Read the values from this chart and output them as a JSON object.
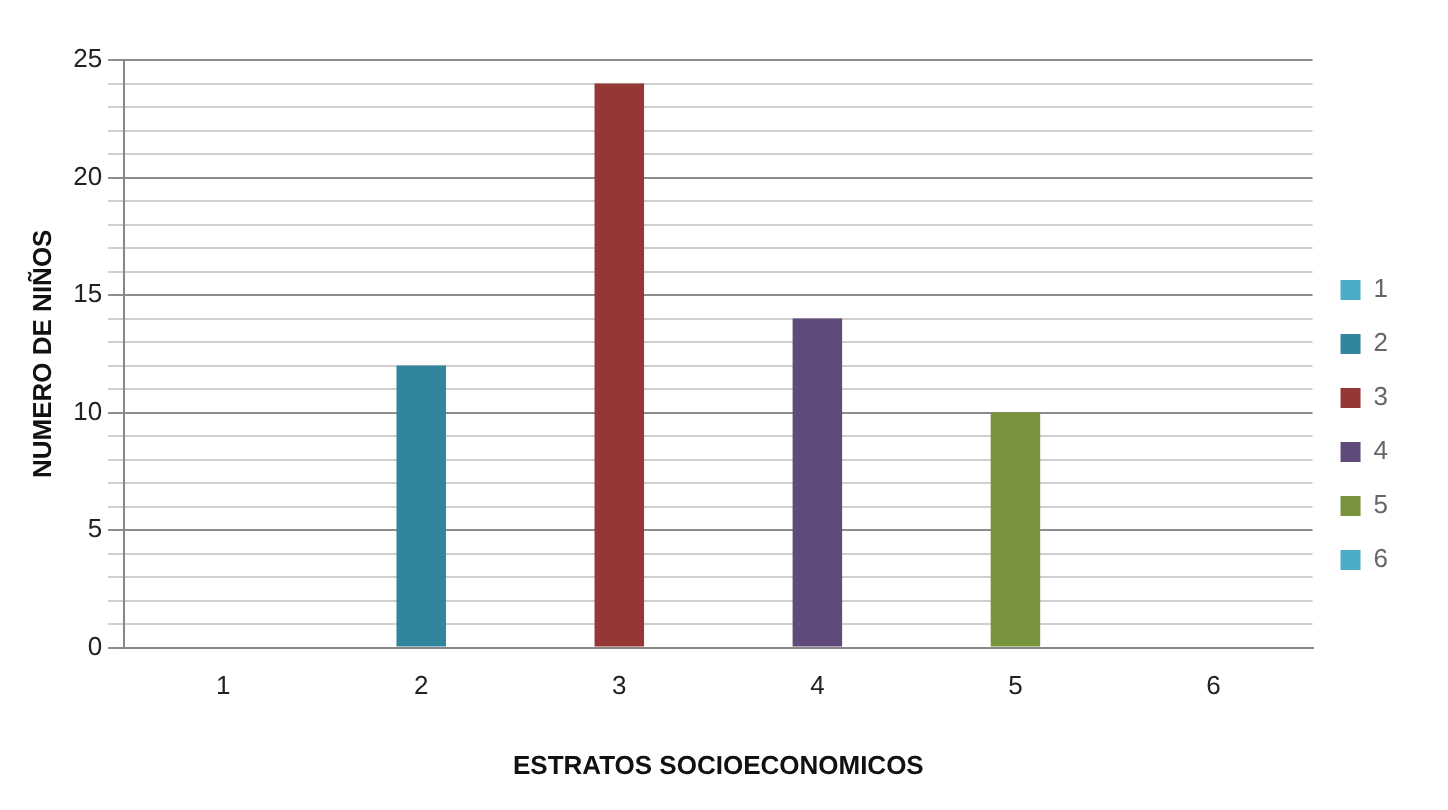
{
  "chart_data": {
    "type": "bar",
    "xlabel": "ESTRATOS SOCIOECONOMICOS",
    "ylabel": "NUMERO DE NIÑOS",
    "categories": [
      "1",
      "2",
      "3",
      "4",
      "5",
      "6"
    ],
    "series": [
      {
        "name": "1",
        "color": "#4bacc6",
        "values": [
          0,
          null,
          null,
          null,
          null,
          null
        ]
      },
      {
        "name": "2",
        "color": "#31859c",
        "values": [
          null,
          12,
          null,
          null,
          null,
          null
        ]
      },
      {
        "name": "3",
        "color": "#953735",
        "values": [
          null,
          null,
          24,
          null,
          null,
          null
        ]
      },
      {
        "name": "4",
        "color": "#604a7b",
        "values": [
          null,
          null,
          null,
          14,
          null,
          null
        ]
      },
      {
        "name": "5",
        "color": "#77933c",
        "values": [
          null,
          null,
          null,
          null,
          10,
          null
        ]
      },
      {
        "name": "6",
        "color": "#4bacc6",
        "values": [
          null,
          null,
          null,
          null,
          null,
          0
        ]
      }
    ],
    "ylim": [
      0,
      25
    ],
    "yticks": [
      0,
      {
        "value": 1,
        "label": null
      },
      {
        "value": 2,
        "label": null
      },
      {
        "value": 3,
        "label": null
      },
      {
        "value": 4,
        "label": null
      },
      5,
      {
        "value": 6,
        "label": null
      },
      {
        "value": 7,
        "label": null
      },
      {
        "value": 8,
        "label": null
      },
      {
        "value": 9,
        "label": null
      },
      10,
      {
        "value": 11,
        "label": null
      },
      {
        "value": 12,
        "label": null
      },
      {
        "value": 13,
        "label": null
      },
      {
        "value": 14,
        "label": null
      },
      15,
      {
        "value": 16,
        "label": null
      },
      {
        "value": 17,
        "label": null
      },
      {
        "value": 18,
        "label": null
      },
      {
        "value": 19,
        "label": null
      },
      20,
      {
        "value": 21,
        "label": null
      },
      {
        "value": 22,
        "label": null
      },
      {
        "value": 23,
        "label": null
      },
      {
        "value": 24,
        "label": null
      },
      25
    ],
    "grid": "y",
    "legend": "right"
  }
}
